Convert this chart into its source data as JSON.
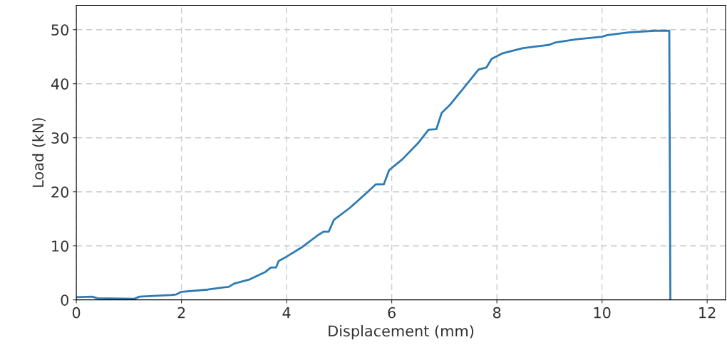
{
  "chart_data": {
    "type": "line",
    "xlabel": "Displacement (mm)",
    "ylabel": "Load (kN)",
    "xlim": [
      0,
      12.35
    ],
    "ylim": [
      0,
      54.5
    ],
    "xticks": [
      0,
      2,
      4,
      6,
      8,
      10,
      12
    ],
    "yticks": [
      0,
      10,
      20,
      30,
      40,
      50
    ],
    "grid": true,
    "series": [
      {
        "color": "#2e7bb4",
        "x": [
          0,
          0.3,
          0.4,
          1.1,
          1.2,
          1.8,
          1.9,
          2.0,
          2.5,
          2.8,
          2.9,
          3.0,
          3.3,
          3.6,
          3.7,
          3.8,
          3.85,
          4.0,
          4.3,
          4.6,
          4.7,
          4.8,
          4.9,
          5.2,
          5.5,
          5.7,
          5.85,
          5.95,
          6.2,
          6.5,
          6.7,
          6.85,
          6.95,
          7.1,
          7.4,
          7.65,
          7.8,
          7.9,
          8.1,
          8.5,
          9.0,
          9.1,
          9.5,
          10.0,
          10.1,
          10.5,
          11.0,
          11.28,
          11.3
        ],
        "values": [
          0.5,
          0.6,
          0.3,
          0.2,
          0.6,
          0.9,
          1.0,
          1.5,
          1.9,
          2.3,
          2.4,
          3.0,
          3.8,
          5.2,
          6.0,
          6.0,
          7.2,
          8.0,
          9.8,
          12.0,
          12.6,
          12.6,
          14.8,
          17.0,
          19.6,
          21.4,
          21.4,
          24.0,
          26.0,
          29.0,
          31.5,
          31.6,
          34.6,
          36.0,
          39.6,
          42.6,
          43.0,
          44.6,
          45.6,
          46.6,
          47.2,
          47.6,
          48.2,
          48.7,
          49.0,
          49.5,
          49.8,
          49.8,
          0
        ]
      }
    ]
  }
}
